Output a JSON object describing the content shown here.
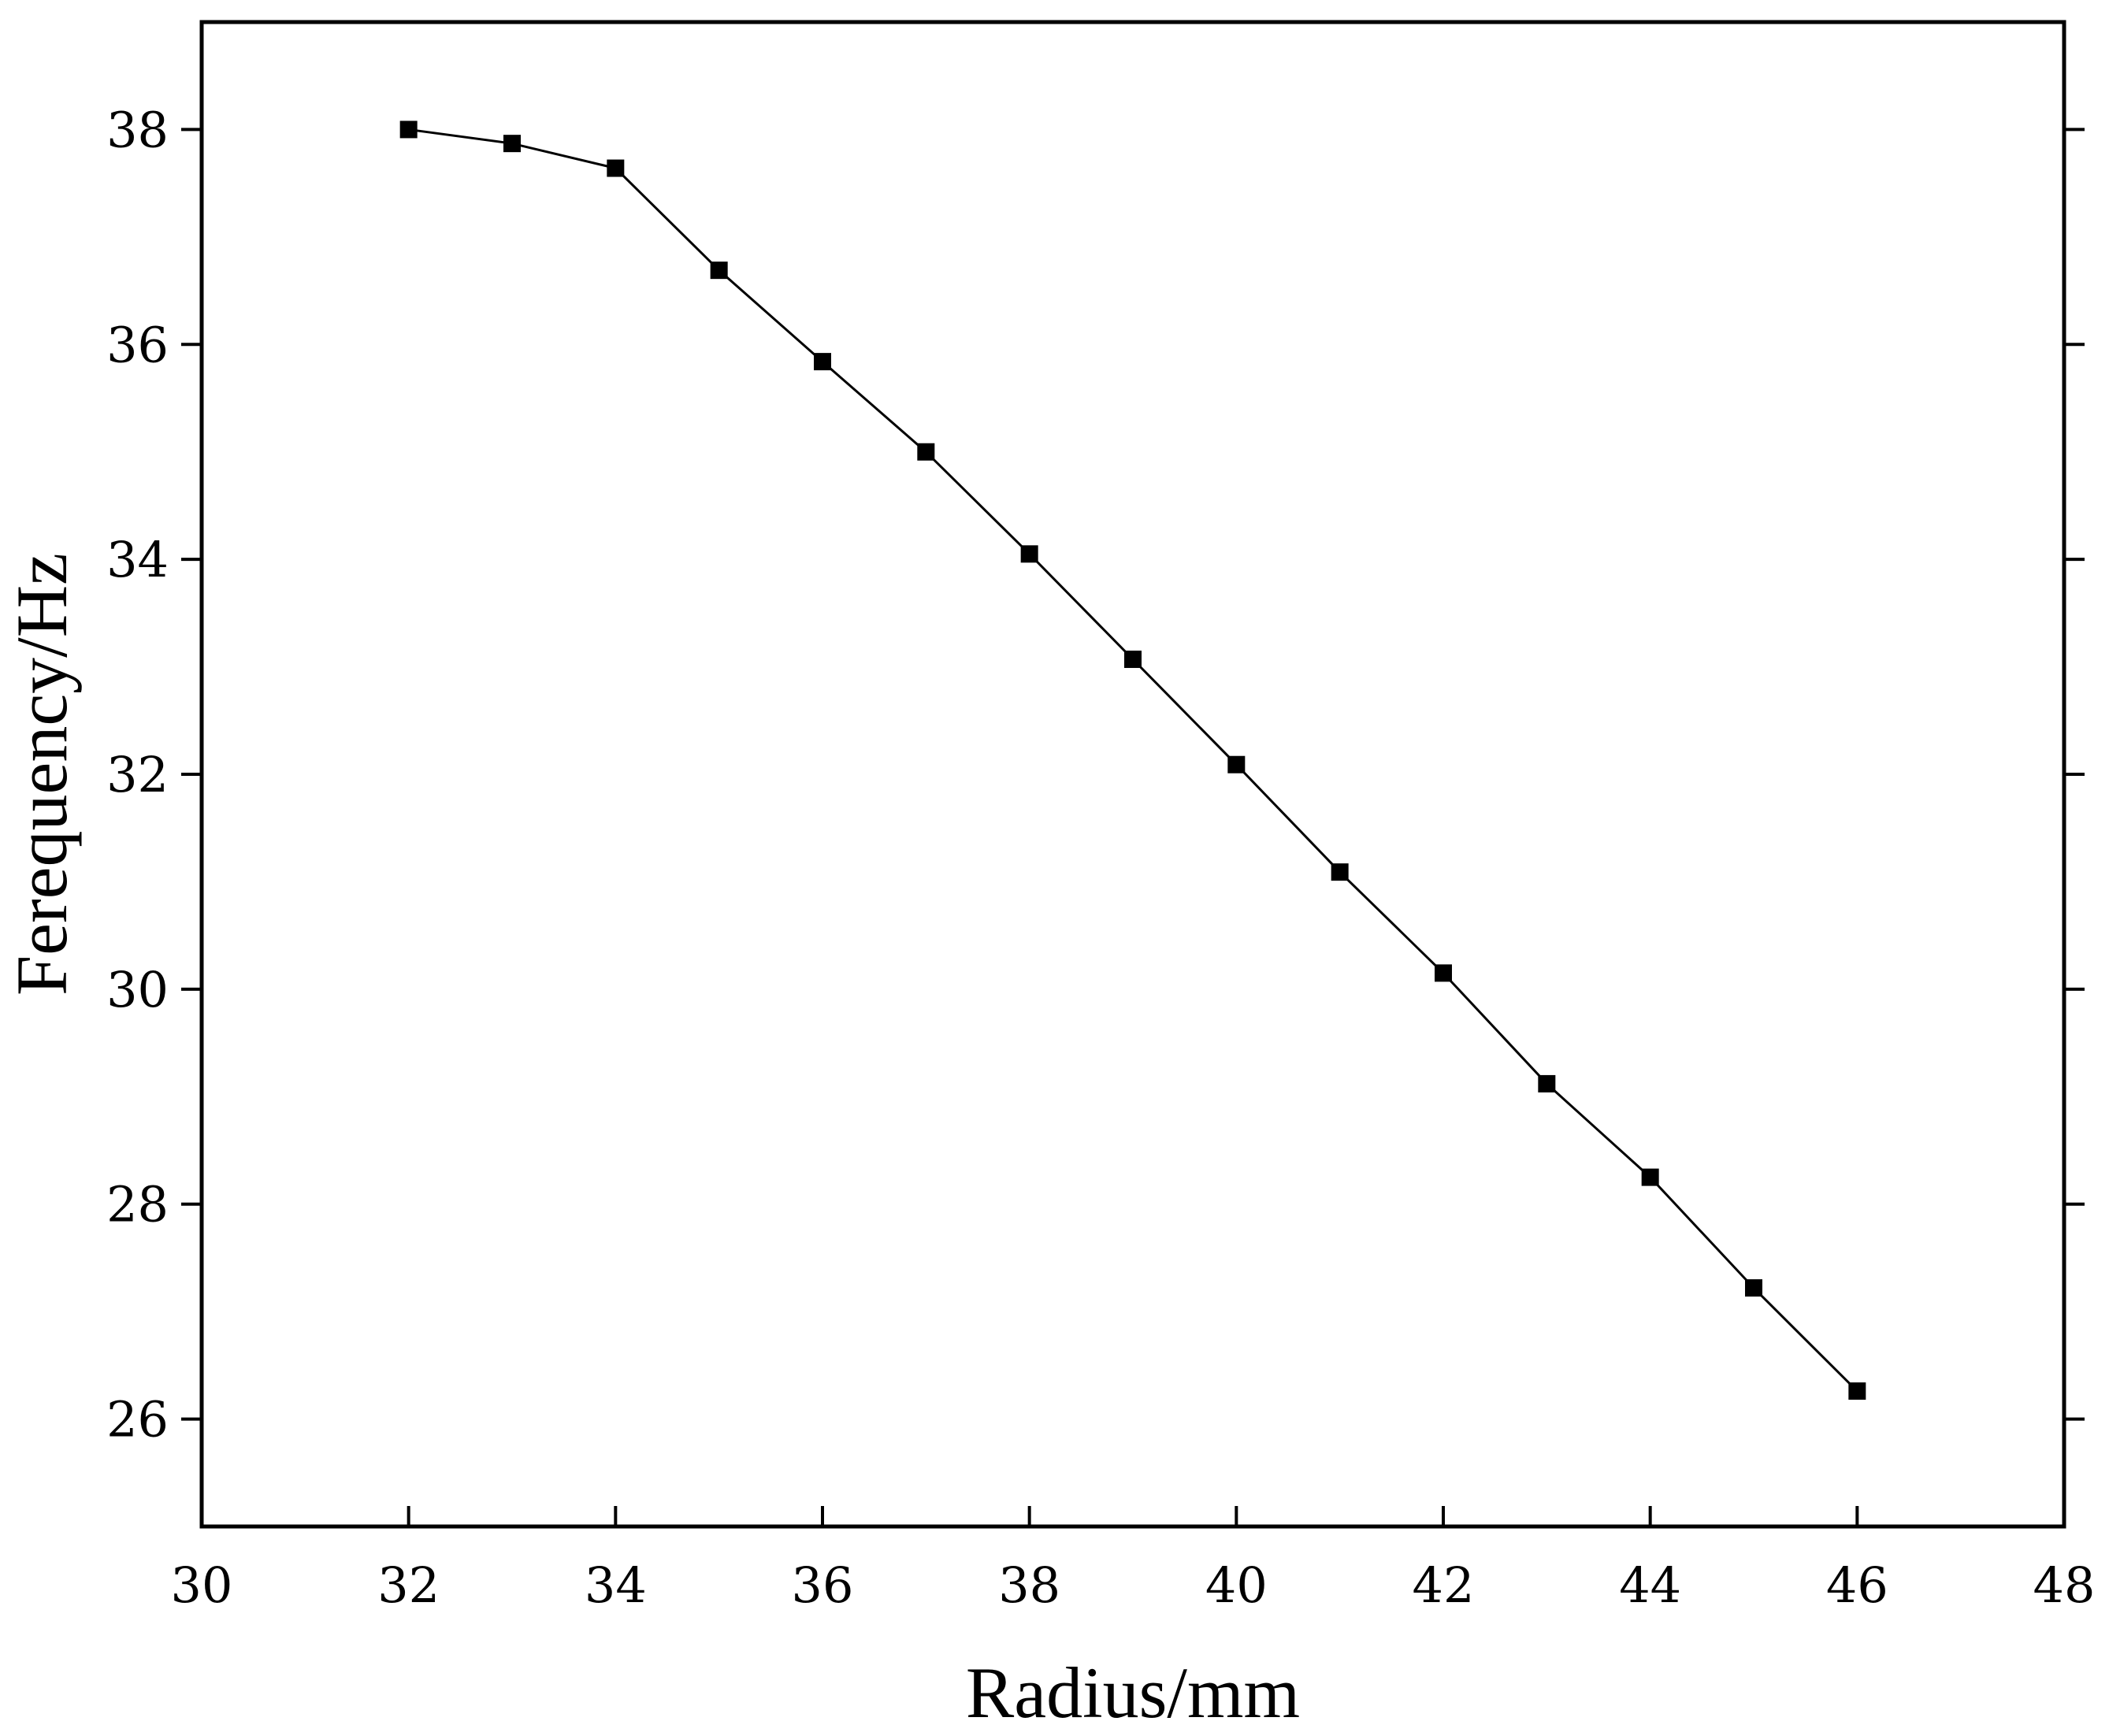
{
  "chart_data": {
    "type": "line",
    "title": "",
    "xlabel": "Radius/mm",
    "ylabel": "Ferequency/Hz",
    "xlim": [
      30,
      48
    ],
    "ylim": [
      25,
      39
    ],
    "xticks": [
      30,
      32,
      34,
      36,
      38,
      40,
      42,
      44,
      46,
      48
    ],
    "yticks": [
      26,
      28,
      30,
      32,
      34,
      36,
      38
    ],
    "grid": false,
    "legend": "none",
    "colors": {
      "line": "#000000",
      "marker": "#000000",
      "axes": "#000000",
      "background": "#ffffff"
    },
    "marker_shape": "square",
    "series": [
      {
        "x": [
          32,
          33,
          34,
          35,
          36,
          37,
          38,
          39,
          40,
          41,
          42,
          43,
          44,
          45,
          46
        ],
        "y": [
          38.0,
          37.87,
          37.64,
          36.69,
          35.84,
          35.0,
          34.05,
          33.07,
          32.09,
          31.09,
          30.15,
          29.12,
          28.25,
          27.22,
          26.26
        ]
      }
    ]
  }
}
